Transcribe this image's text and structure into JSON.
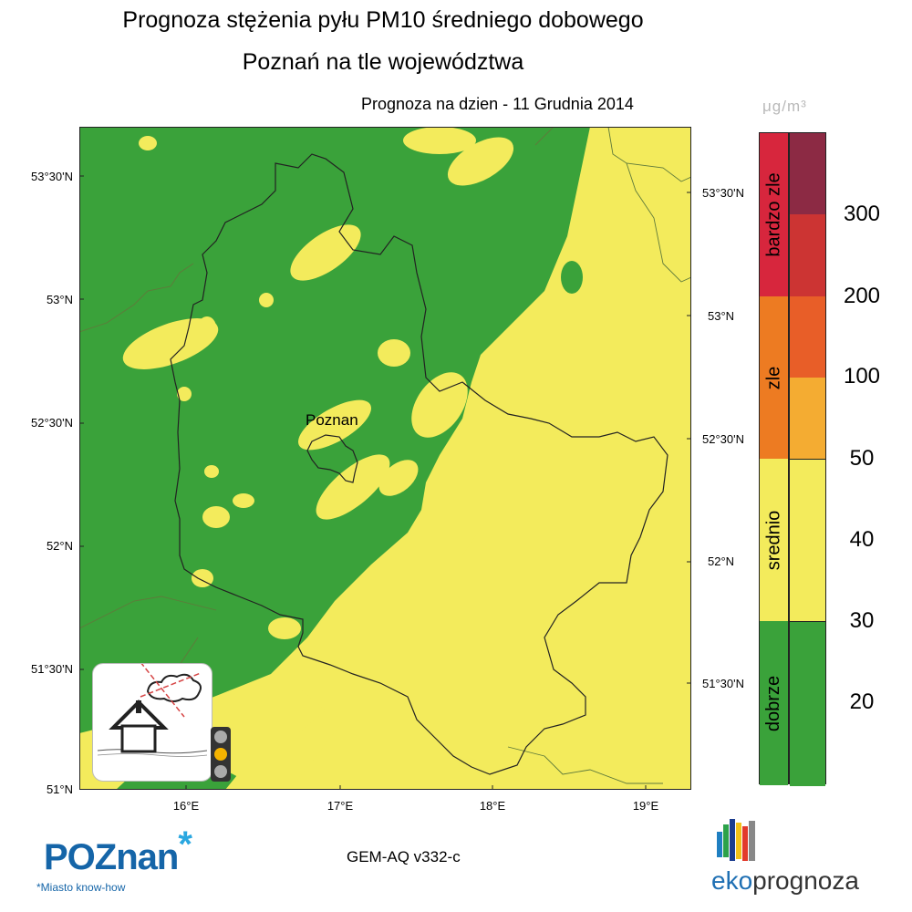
{
  "header": {
    "title_line1": "Prognoza stężenia pyłu PM10 średniego dobowego",
    "title_line2": "Poznań na tle województwa",
    "forecast_date": "Prognoza na dzien -  11 Grudnia 2014"
  },
  "map": {
    "city_label": "Poznan",
    "lat_labels_left": [
      "53°30'N",
      "53°N",
      "52°30'N",
      "52°N",
      "51°30'N",
      "51°N"
    ],
    "lat_labels_right": [
      "53°30'N",
      "53°N",
      "52°30'N",
      "52°N",
      "51°30'N"
    ],
    "lon_labels": [
      "16°E",
      "17°E",
      "18°E",
      "19°E"
    ],
    "colors": {
      "green": "#3aa23a",
      "yellow": "#f3eb5c",
      "border": "#222222",
      "neighbor_border": "#5f7a3b"
    }
  },
  "legend": {
    "unit": "μg/m³",
    "categories": [
      {
        "label": "bardzo zle",
        "color": "#d7263d"
      },
      {
        "label": "zle",
        "color": "#ed7b22"
      },
      {
        "label": "srednio",
        "color": "#f3eb5c"
      },
      {
        "label": "dobrze",
        "color": "#3aa23a"
      }
    ],
    "scale_colors": [
      "#8c2a44",
      "#cc3433",
      "#e85e28",
      "#f4ac32",
      "#f3eb5c",
      "#f3eb5c",
      "#3aa23a",
      "#3aa23a"
    ],
    "levels": [
      "300",
      "200",
      "100",
      "50",
      "40",
      "30",
      "20"
    ]
  },
  "footer": {
    "model": "GEM-AQ v332-c",
    "brand_left": "POZnan",
    "brand_left_star": "*",
    "brand_left_tagline": "*Miasto know-how",
    "brand_right_eko": "eko",
    "brand_right_prognoza": "prognoza"
  },
  "indicator": {
    "traffic_light": [
      "off",
      "amber",
      "off"
    ],
    "icon": "smog-house-icon"
  }
}
